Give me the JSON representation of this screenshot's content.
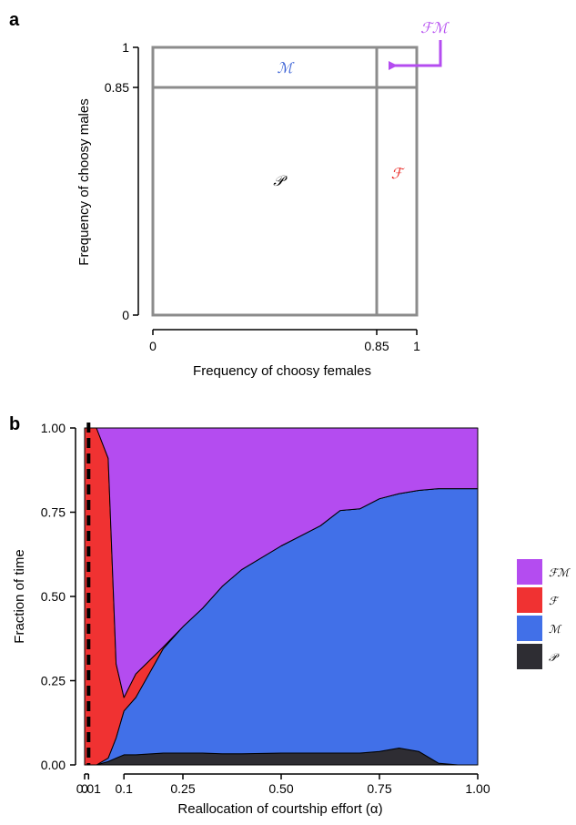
{
  "panel_a": {
    "label": "a",
    "xlabel": "Frequency of choosy females",
    "ylabel": "Frequency of choosy males",
    "x_ticks": [
      "0",
      "0.85",
      "1"
    ],
    "y_ticks": [
      "0",
      "0.85",
      "1"
    ],
    "regions": {
      "P": "𝒫",
      "F": "ℱ",
      "M": "ℳ",
      "FM": "ℱℳ"
    },
    "colors": {
      "box": "#8c8c8c",
      "P": "#000000",
      "F": "#e8231f",
      "M": "#3c63d6",
      "FM": "#b44cf0"
    }
  },
  "panel_b": {
    "label": "b",
    "xlabel": "Reallocation of courtship effort (α)",
    "ylabel": "Fraction of time",
    "x_ticks": [
      "0",
      "0.01",
      "0.1",
      "0.25",
      "0.50",
      "0.75",
      "1.00"
    ],
    "y_ticks": [
      "0.00",
      "0.25",
      "0.50",
      "0.75",
      "1.00"
    ],
    "legend": [
      {
        "key": "FM",
        "label": "ℱℳ",
        "color": "#b44cf0"
      },
      {
        "key": "F",
        "label": "ℱ",
        "color": "#f03232"
      },
      {
        "key": "M",
        "label": "ℳ",
        "color": "#4170e8"
      },
      {
        "key": "P",
        "label": "𝒫",
        "color": "#2e2d33"
      }
    ]
  },
  "chart_data": [
    {
      "type": "table",
      "title": "",
      "xlabel": "Frequency of choosy females",
      "ylabel": "Frequency of choosy males",
      "xlim": [
        0,
        1
      ],
      "ylim": [
        0,
        1
      ],
      "thresholds": {
        "x": 0.85,
        "y": 0.85
      },
      "regions": [
        {
          "name": "𝒫",
          "x": [
            0,
            0.85
          ],
          "y": [
            0,
            0.85
          ]
        },
        {
          "name": "ℱ",
          "x": [
            0.85,
            1
          ],
          "y": [
            0,
            0.85
          ]
        },
        {
          "name": "ℳ",
          "x": [
            0,
            0.85
          ],
          "y": [
            0.85,
            1
          ]
        },
        {
          "name": "ℱℳ",
          "x": [
            0.85,
            1
          ],
          "y": [
            0.85,
            1
          ]
        }
      ]
    },
    {
      "type": "area",
      "title": "",
      "xlabel": "Reallocation of courtship effort (α)",
      "ylabel": "Fraction of time",
      "xlim": [
        0,
        1
      ],
      "ylim": [
        0,
        1
      ],
      "stacked": true,
      "dashed_reference_x": 0.01,
      "x": [
        0,
        0.01,
        0.03,
        0.06,
        0.08,
        0.1,
        0.13,
        0.2,
        0.25,
        0.3,
        0.35,
        0.4,
        0.5,
        0.55,
        0.6,
        0.65,
        0.7,
        0.75,
        0.8,
        0.85,
        0.9,
        0.95,
        1.0
      ],
      "series": [
        {
          "name": "𝒫",
          "values": [
            0,
            0,
            0,
            0.01,
            0.02,
            0.03,
            0.03,
            0.035,
            0.035,
            0.035,
            0.033,
            0.033,
            0.035,
            0.035,
            0.035,
            0.035,
            0.035,
            0.04,
            0.05,
            0.04,
            0.005,
            0,
            0
          ]
        },
        {
          "name": "ℳ",
          "values": [
            0,
            0,
            0,
            0.01,
            0.06,
            0.13,
            0.17,
            0.31,
            0.375,
            0.43,
            0.497,
            0.547,
            0.615,
            0.645,
            0.675,
            0.72,
            0.725,
            0.75,
            0.755,
            0.775,
            0.815,
            0.82,
            0.82
          ]
        },
        {
          "name": "ℱ",
          "values": [
            1,
            1,
            1,
            0.89,
            0.22,
            0.04,
            0.07,
            0.005,
            0,
            0,
            0,
            0,
            0,
            0,
            0,
            0,
            0,
            0,
            0,
            0,
            0,
            0,
            0
          ]
        },
        {
          "name": "ℱℳ",
          "values": [
            0,
            0,
            0,
            0.09,
            0.7,
            0.8,
            0.73,
            0.65,
            0.59,
            0.535,
            0.47,
            0.42,
            0.35,
            0.32,
            0.29,
            0.245,
            0.24,
            0.21,
            0.195,
            0.185,
            0.18,
            0.18,
            0.18
          ]
        }
      ]
    }
  ]
}
